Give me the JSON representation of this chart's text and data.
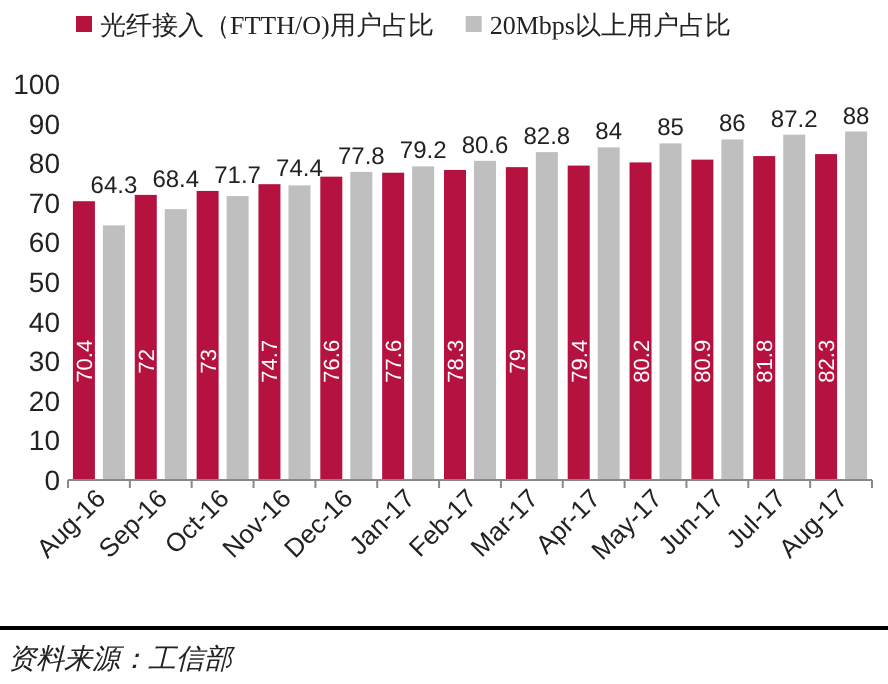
{
  "chart_data": {
    "type": "bar",
    "categories": [
      "Aug-16",
      "Sep-16",
      "Oct-16",
      "Nov-16",
      "Dec-16",
      "Jan-17",
      "Feb-17",
      "Mar-17",
      "Apr-17",
      "May-17",
      "Jun-17",
      "Jul-17",
      "Aug-17"
    ],
    "series": [
      {
        "name": "光纤接入（FTTH/O)用户占比",
        "color": "#b5123f",
        "values": [
          70.4,
          72,
          73,
          74.7,
          76.6,
          77.6,
          78.3,
          79,
          79.4,
          80.2,
          80.9,
          81.8,
          82.3
        ]
      },
      {
        "name": "20Mbps以上用户占比",
        "color": "#bfbfbf",
        "values": [
          64.3,
          68.4,
          71.7,
          74.4,
          77.8,
          79.2,
          80.6,
          82.8,
          84,
          85,
          86,
          87.2,
          88
        ]
      }
    ],
    "ylim": [
      0,
      100
    ],
    "yticks": [
      0,
      10,
      20,
      30,
      40,
      50,
      60,
      70,
      80,
      90,
      100
    ],
    "grid": false,
    "legend": "top",
    "data_labels": true,
    "annotations": [
      "资料来源：工信部"
    ]
  }
}
